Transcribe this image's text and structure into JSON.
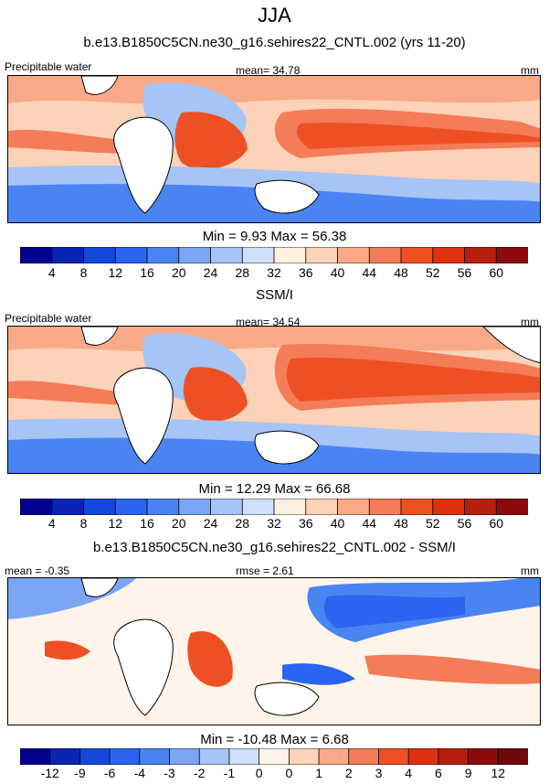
{
  "season_title": "JJA",
  "chart_data": [
    {
      "type": "heatmap",
      "panel_title": "b.e13.B1850C5CN.ne30_g16.sehires22_CNTL.002 (yrs 11-20)",
      "variable_label": "Precipitable water",
      "stat_text": "mean=  34.78",
      "units": "mm",
      "minmax_text": "Min =   9.93 Max =  56.38",
      "colorbar": {
        "tick_labels": [
          "4",
          "8",
          "12",
          "16",
          "20",
          "24",
          "28",
          "32",
          "36",
          "40",
          "44",
          "48",
          "52",
          "56",
          "60"
        ],
        "colors": [
          "#00008e",
          "#0a24b4",
          "#1446dc",
          "#2a64f0",
          "#4a84f2",
          "#7aa6f4",
          "#a6c4f6",
          "#d0e0fa",
          "#fff0e0",
          "#fcd2b8",
          "#f8aa88",
          "#f47c58",
          "#ee5024",
          "#e03010",
          "#b81e0c",
          "#8c0a0a"
        ]
      }
    },
    {
      "type": "heatmap",
      "panel_title": "SSM/I",
      "variable_label": "Precipitable water",
      "stat_text": "mean=  34.54",
      "units": "mm",
      "minmax_text": "Min =  12.29 Max =  66.68",
      "colorbar": {
        "tick_labels": [
          "4",
          "8",
          "12",
          "16",
          "20",
          "24",
          "28",
          "32",
          "36",
          "40",
          "44",
          "48",
          "52",
          "56",
          "60"
        ],
        "colors": [
          "#00008e",
          "#0a24b4",
          "#1446dc",
          "#2a64f0",
          "#4a84f2",
          "#7aa6f4",
          "#a6c4f6",
          "#d0e0fa",
          "#fff0e0",
          "#fcd2b8",
          "#f8aa88",
          "#f47c58",
          "#ee5024",
          "#e03010",
          "#b81e0c",
          "#8c0a0a"
        ]
      }
    },
    {
      "type": "heatmap",
      "panel_title": "b.e13.B1850C5CN.ne30_g16.sehires22_CNTL.002 - SSM/I",
      "variable_label": "mean =  -0.35",
      "stat_text": "rmse =   2.61",
      "units": "mm",
      "minmax_text": "Min = -10.48 Max =   6.68",
      "colorbar": {
        "tick_labels": [
          "-12",
          "-9",
          "-6",
          "-4",
          "-3",
          "-2",
          "-1",
          "0",
          "0",
          "1",
          "2",
          "3",
          "4",
          "6",
          "9",
          "12"
        ],
        "colors": [
          "#00008e",
          "#0a24b4",
          "#1446dc",
          "#2a64f0",
          "#4a84f2",
          "#7aa6f4",
          "#a6c4f6",
          "#d0e0fa",
          "#fff4ea",
          "#fcd2b8",
          "#f8aa88",
          "#f47c58",
          "#ee5024",
          "#e03010",
          "#b81e0c",
          "#8c0a0a",
          "#700808"
        ]
      }
    }
  ]
}
